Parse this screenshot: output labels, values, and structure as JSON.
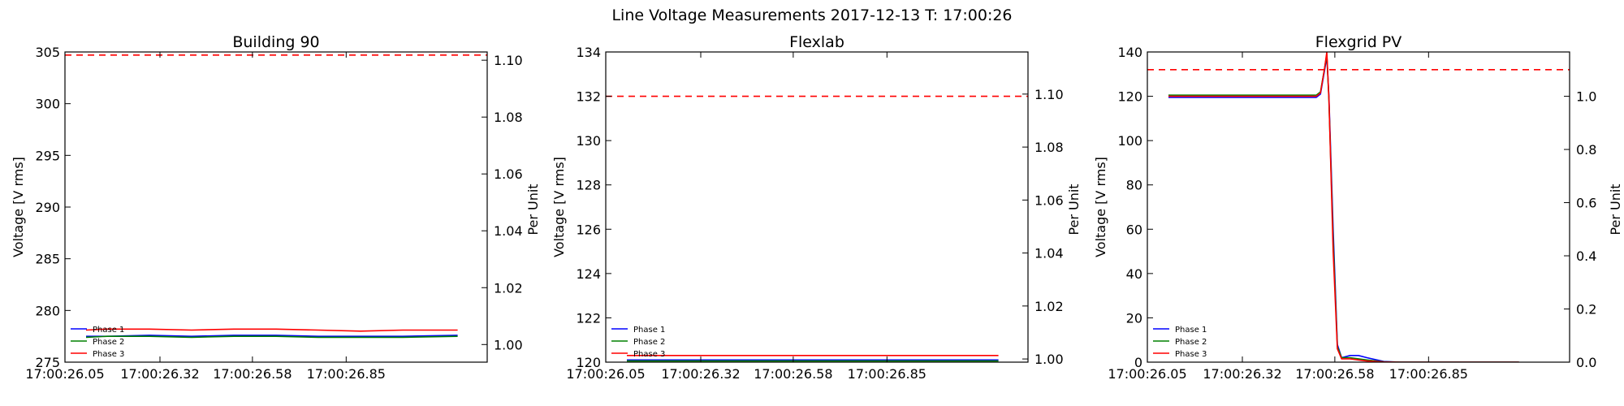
{
  "title": "Line Voltage Measurements 2017-12-13 T: 17:00:26",
  "colors": {
    "phase1": "#0000ff",
    "phase2": "#008000",
    "phase3": "#ff0000",
    "limit": "#ff0000"
  },
  "chart_data": [
    {
      "type": "line",
      "title": "Building 90",
      "ylabel": "Voltage [V rms]",
      "y2label": "Per Unit",
      "ylim": [
        275,
        305
      ],
      "y2lim": [
        0.9938,
        1.1029
      ],
      "yticks": [
        "275",
        "280",
        "285",
        "290",
        "295",
        "300",
        "305"
      ],
      "y2ticks": [
        "1.00",
        "1.02",
        "1.04",
        "1.06",
        "1.08",
        "1.10"
      ],
      "xticks": [
        "17:00:26.05",
        "17:00:26.32",
        "17:00:26.58",
        "17:00:26.85"
      ],
      "xlim": [
        0,
        100
      ],
      "xtick_pos": [
        0,
        22.5,
        44.4,
        66.6
      ],
      "limit_line": 304.7,
      "legend_loc": "lower left",
      "series": [
        {
          "name": "Phase 1",
          "x": [
            5,
            10,
            20,
            30,
            40,
            50,
            60,
            70,
            80,
            93
          ],
          "values": [
            277.5,
            277.5,
            277.6,
            277.5,
            277.6,
            277.6,
            277.5,
            277.5,
            277.5,
            277.6
          ]
        },
        {
          "name": "Phase 2",
          "x": [
            5,
            10,
            20,
            30,
            40,
            50,
            60,
            70,
            80,
            93
          ],
          "values": [
            277.4,
            277.5,
            277.5,
            277.4,
            277.5,
            277.5,
            277.4,
            277.4,
            277.4,
            277.5
          ]
        },
        {
          "name": "Phase 3",
          "x": [
            5,
            10,
            20,
            30,
            40,
            50,
            60,
            70,
            80,
            93
          ],
          "values": [
            278.1,
            278.2,
            278.2,
            278.1,
            278.2,
            278.2,
            278.1,
            278.0,
            278.1,
            278.1
          ]
        }
      ]
    },
    {
      "type": "line",
      "title": "Flexlab",
      "ylabel": "Voltage [V rms]",
      "y2label": "Per Unit",
      "ylim": [
        120,
        134
      ],
      "y2lim": [
        0.9988,
        1.1159
      ],
      "yticks": [
        "120",
        "122",
        "124",
        "126",
        "128",
        "130",
        "132",
        "134"
      ],
      "y2ticks": [
        "1.00",
        "1.02",
        "1.04",
        "1.06",
        "1.08",
        "1.10"
      ],
      "xticks": [
        "17:00:26.05",
        "17:00:26.32",
        "17:00:26.58",
        "17:00:26.85"
      ],
      "xlim": [
        0,
        100
      ],
      "xtick_pos": [
        0,
        22.5,
        44.4,
        66.6
      ],
      "limit_line": 132,
      "legend_loc": "lower left",
      "series": [
        {
          "name": "Phase 1",
          "x": [
            5,
            10,
            20,
            30,
            40,
            50,
            60,
            70,
            80,
            93
          ],
          "values": [
            120.1,
            120.1,
            120.1,
            120.1,
            120.1,
            120.1,
            120.1,
            120.1,
            120.1,
            120.1
          ]
        },
        {
          "name": "Phase 2",
          "x": [
            5,
            10,
            20,
            30,
            40,
            50,
            60,
            70,
            80,
            93
          ],
          "values": [
            120.05,
            120.05,
            120.05,
            120.05,
            120.05,
            120.05,
            120.05,
            120.05,
            120.05,
            120.05
          ]
        },
        {
          "name": "Phase 3",
          "x": [
            5,
            10,
            20,
            30,
            40,
            50,
            60,
            70,
            80,
            93
          ],
          "values": [
            120.3,
            120.3,
            120.3,
            120.3,
            120.3,
            120.3,
            120.3,
            120.3,
            120.3,
            120.3
          ]
        }
      ]
    },
    {
      "type": "line",
      "title": "Flexgrid PV",
      "ylabel": "Voltage [V rms]",
      "y2label": "Per Unit",
      "ylim": [
        0,
        140
      ],
      "y2lim": [
        0,
        1.1667
      ],
      "yticks": [
        "0",
        "20",
        "40",
        "60",
        "80",
        "100",
        "120",
        "140"
      ],
      "y2ticks": [
        "0.0",
        "0.2",
        "0.4",
        "0.6",
        "0.8",
        "1.0"
      ],
      "xticks": [
        "17:00:26.05",
        "17:00:26.32",
        "17:00:26.58",
        "17:00:26.85"
      ],
      "xlim": [
        0,
        100
      ],
      "xtick_pos": [
        0,
        22.5,
        44.4,
        66.6
      ],
      "limit_line": 132,
      "legend_loc": "lower left",
      "series": [
        {
          "name": "Phase 1",
          "x": [
            5,
            20,
            35,
            40,
            41,
            42,
            42.5,
            43,
            44,
            45,
            46,
            48,
            50,
            52,
            56,
            60,
            70,
            80,
            88
          ],
          "values": [
            119.5,
            119.5,
            119.5,
            119.5,
            121,
            132,
            138,
            120,
            60,
            8,
            2,
            3,
            3,
            2,
            0.3,
            0,
            0,
            0,
            0
          ]
        },
        {
          "name": "Phase 2",
          "x": [
            5,
            20,
            35,
            40,
            41,
            42,
            42.5,
            43,
            44,
            45,
            46,
            48,
            50,
            52,
            56,
            60,
            70,
            80,
            88
          ],
          "values": [
            120.5,
            120.5,
            120.5,
            120.5,
            122,
            133,
            139,
            118,
            55,
            7,
            2,
            2,
            1.5,
            1,
            0.2,
            0,
            0,
            0,
            0
          ]
        },
        {
          "name": "Phase 3",
          "x": [
            5,
            20,
            35,
            40,
            41,
            42,
            42.5,
            43,
            44,
            45,
            46,
            48,
            50,
            52,
            56,
            60,
            70,
            80,
            88
          ],
          "values": [
            120,
            120,
            120,
            120,
            121.5,
            133,
            140,
            119,
            50,
            6,
            1.5,
            1.5,
            1,
            0.5,
            0.1,
            0,
            0,
            0,
            0
          ]
        }
      ]
    }
  ]
}
